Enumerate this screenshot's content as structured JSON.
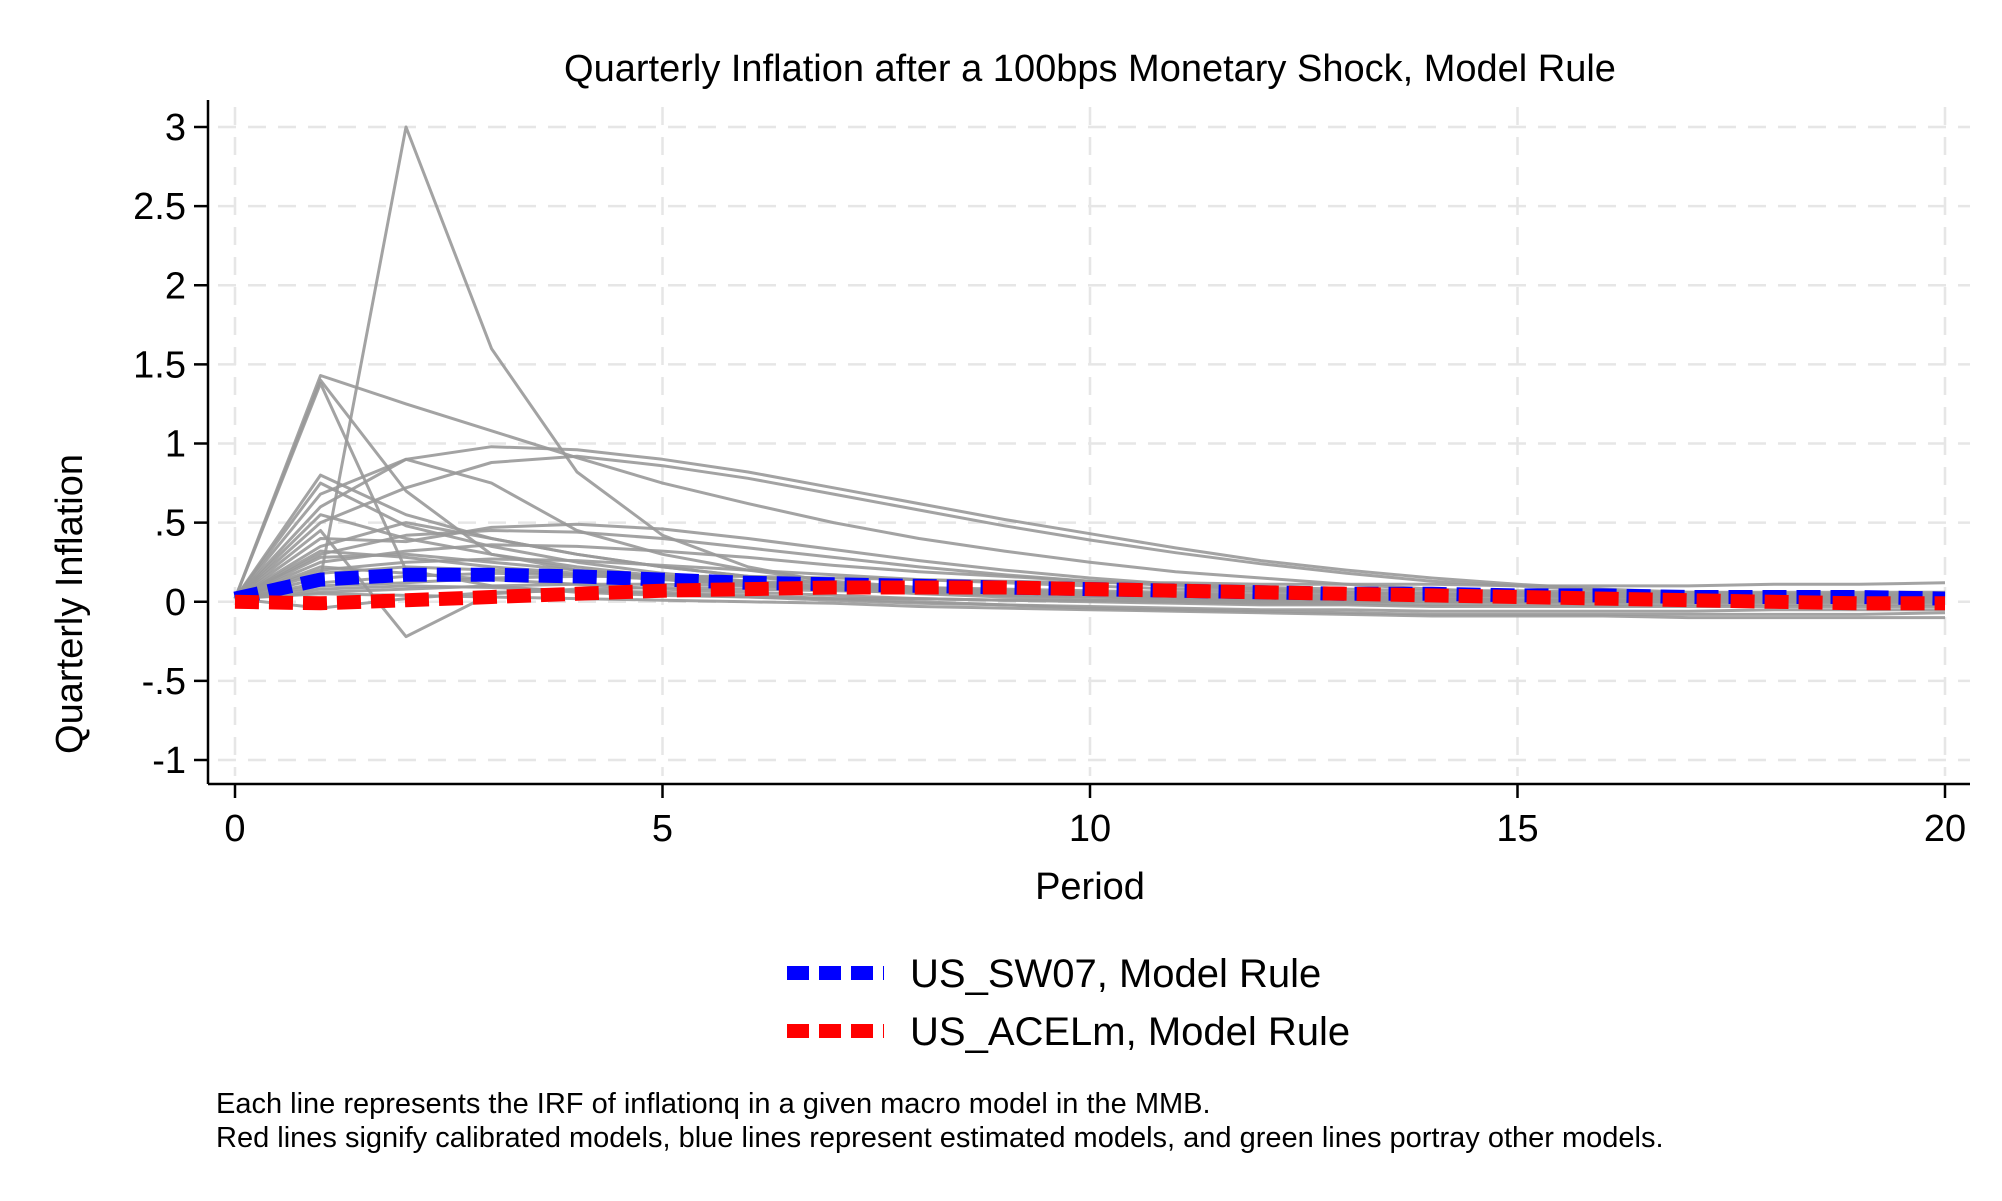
{
  "chart_data": {
    "type": "line",
    "title": "Quarterly Inflation after a 100bps Monetary Shock, Model Rule",
    "xlabel": "Period",
    "ylabel": "Quarterly Inflation",
    "xlim": [
      0,
      20
    ],
    "ylim": [
      -1,
      3
    ],
    "x_ticks": [
      0,
      5,
      10,
      15,
      20
    ],
    "x_tick_labels": [
      "0",
      "5",
      "10",
      "15",
      "20"
    ],
    "y_ticks": [
      -1,
      -0.5,
      0,
      0.5,
      1,
      1.5,
      2,
      2.5,
      3
    ],
    "y_tick_labels": [
      "-1",
      "-.5",
      "0",
      ".5",
      "1",
      "1.5",
      "2",
      "2.5",
      "3"
    ],
    "grid": true,
    "legend_position": "bottom",
    "colors": {
      "background_models": "#999999",
      "grid": "#e6e6e6",
      "us_sw07": "#0000ff",
      "us_acelm": "#ff0000"
    },
    "x": [
      0,
      1,
      2,
      3,
      4,
      5,
      6,
      7,
      8,
      9,
      10,
      11,
      12,
      13,
      14,
      15,
      16,
      17,
      18,
      19,
      20
    ],
    "series": [
      {
        "name": "US_SW07, Model Rule",
        "color": "#0000ff",
        "style": "dashed",
        "values": [
          0.02,
          0.14,
          0.17,
          0.17,
          0.16,
          0.14,
          0.12,
          0.11,
          0.1,
          0.09,
          0.08,
          0.07,
          0.06,
          0.05,
          0.05,
          0.04,
          0.04,
          0.03,
          0.03,
          0.03,
          0.02
        ]
      },
      {
        "name": "US_ACELm, Model Rule",
        "color": "#ff0000",
        "style": "dashed",
        "values": [
          0.0,
          -0.01,
          0.01,
          0.03,
          0.05,
          0.07,
          0.08,
          0.09,
          0.09,
          0.09,
          0.08,
          0.07,
          0.06,
          0.05,
          0.04,
          0.03,
          0.02,
          0.01,
          0.0,
          -0.01,
          -0.01
        ]
      }
    ],
    "background_series": [
      [
        0.02,
        1.4,
        0.7,
        0.3,
        0.2,
        0.15,
        0.1,
        0.08,
        0.06,
        0.05,
        0.04,
        0.03,
        0.02,
        0.02,
        0.01,
        0.01,
        0.01,
        0.01,
        0.01,
        0.01,
        0.01
      ],
      [
        0.02,
        1.43,
        1.25,
        1.08,
        0.91,
        0.75,
        0.62,
        0.5,
        0.4,
        0.32,
        0.25,
        0.19,
        0.15,
        0.11,
        0.08,
        0.06,
        0.05,
        0.04,
        0.03,
        0.02,
        0.02
      ],
      [
        0.02,
        1.38,
        0.2,
        0.1,
        0.06,
        0.04,
        0.03,
        0.02,
        0.02,
        0.01,
        0.01,
        0.01,
        0.0,
        0.0,
        0.0,
        0.0,
        0.0,
        0.0,
        0.0,
        0.0,
        0.0
      ],
      [
        0.02,
        0.15,
        3.0,
        1.6,
        0.82,
        0.42,
        0.22,
        0.12,
        0.07,
        0.04,
        0.03,
        0.02,
        0.01,
        0.01,
        0.0,
        0.0,
        0.0,
        0.0,
        0.0,
        0.0,
        0.0
      ],
      [
        0.02,
        0.6,
        0.9,
        0.98,
        0.96,
        0.9,
        0.82,
        0.72,
        0.62,
        0.52,
        0.43,
        0.34,
        0.26,
        0.2,
        0.15,
        0.11,
        0.08,
        0.06,
        0.05,
        0.04,
        0.03
      ],
      [
        0.02,
        0.5,
        0.72,
        0.88,
        0.92,
        0.86,
        0.78,
        0.68,
        0.58,
        0.48,
        0.39,
        0.31,
        0.24,
        0.18,
        0.13,
        0.1,
        0.07,
        0.05,
        0.04,
        0.03,
        0.02
      ],
      [
        0.02,
        0.8,
        0.55,
        0.4,
        0.3,
        0.22,
        0.16,
        0.11,
        0.08,
        0.06,
        0.04,
        0.03,
        0.02,
        0.02,
        0.01,
        0.01,
        0.01,
        0.0,
        0.0,
        0.0,
        0.0
      ],
      [
        0.02,
        0.75,
        0.48,
        0.35,
        0.25,
        0.18,
        0.13,
        0.09,
        0.06,
        0.04,
        0.03,
        0.02,
        0.01,
        0.01,
        0.0,
        0.0,
        0.0,
        0.0,
        0.0,
        0.0,
        0.0
      ],
      [
        0.02,
        0.68,
        0.9,
        0.75,
        0.45,
        0.3,
        0.2,
        0.13,
        0.09,
        0.06,
        0.04,
        0.03,
        0.02,
        0.01,
        0.01,
        0.0,
        0.0,
        0.0,
        0.0,
        0.0,
        0.0
      ],
      [
        0.02,
        0.4,
        0.38,
        0.47,
        0.49,
        0.46,
        0.4,
        0.33,
        0.26,
        0.2,
        0.15,
        0.11,
        0.08,
        0.06,
        0.05,
        0.04,
        0.03,
        0.03,
        0.02,
        0.02,
        0.02
      ],
      [
        0.02,
        0.3,
        0.42,
        0.45,
        0.44,
        0.4,
        0.34,
        0.28,
        0.22,
        0.17,
        0.13,
        0.1,
        0.08,
        0.06,
        0.05,
        0.04,
        0.03,
        0.02,
        0.02,
        0.02,
        0.02
      ],
      [
        0.02,
        0.55,
        0.4,
        0.3,
        0.22,
        0.16,
        0.12,
        0.09,
        0.07,
        0.05,
        0.04,
        0.03,
        0.02,
        0.02,
        0.01,
        0.01,
        0.01,
        0.01,
        0.0,
        0.0,
        0.0
      ],
      [
        0.02,
        0.35,
        0.5,
        0.4,
        0.3,
        0.22,
        0.16,
        0.12,
        0.09,
        0.07,
        0.05,
        0.04,
        0.03,
        0.02,
        0.02,
        0.01,
        0.01,
        0.01,
        0.01,
        0.0,
        0.0
      ],
      [
        0.02,
        0.25,
        0.32,
        0.36,
        0.35,
        0.32,
        0.28,
        0.23,
        0.19,
        0.16,
        0.13,
        0.11,
        0.09,
        0.08,
        0.07,
        0.07,
        0.06,
        0.06,
        0.06,
        0.06,
        0.06
      ],
      [
        0.02,
        0.1,
        0.12,
        0.15,
        0.16,
        0.16,
        0.16,
        0.15,
        0.14,
        0.13,
        0.12,
        0.12,
        0.11,
        0.11,
        0.11,
        0.1,
        0.1,
        0.1,
        0.11,
        0.11,
        0.12
      ],
      [
        0.02,
        0.2,
        0.25,
        0.27,
        0.26,
        0.23,
        0.2,
        0.17,
        0.14,
        0.12,
        0.1,
        0.08,
        0.07,
        0.06,
        0.05,
        0.05,
        0.04,
        0.04,
        0.04,
        0.04,
        0.04
      ],
      [
        0.02,
        0.45,
        -0.22,
        0.05,
        0.08,
        0.09,
        0.08,
        0.07,
        0.06,
        0.05,
        0.04,
        0.03,
        0.02,
        0.02,
        0.01,
        0.01,
        0.01,
        0.0,
        0.0,
        0.0,
        0.0
      ],
      [
        0.02,
        -0.04,
        0.02,
        0.06,
        0.07,
        0.06,
        0.04,
        0.02,
        0.0,
        -0.02,
        -0.04,
        -0.05,
        -0.06,
        -0.07,
        -0.08,
        -0.08,
        -0.08,
        -0.08,
        -0.08,
        -0.08,
        -0.07
      ],
      [
        0.02,
        0.05,
        0.04,
        0.03,
        0.02,
        0.01,
        0.0,
        -0.01,
        -0.03,
        -0.04,
        -0.05,
        -0.06,
        -0.07,
        -0.08,
        -0.09,
        -0.09,
        -0.09,
        -0.1,
        -0.1,
        -0.1,
        -0.1
      ],
      [
        0.02,
        0.12,
        0.16,
        0.18,
        0.17,
        0.15,
        0.13,
        0.11,
        0.09,
        0.08,
        0.07,
        0.06,
        0.06,
        0.05,
        0.05,
        0.05,
        0.05,
        0.05,
        0.05,
        0.05,
        0.05
      ],
      [
        0.02,
        0.08,
        0.1,
        0.09,
        0.07,
        0.05,
        0.03,
        0.01,
        -0.01,
        -0.02,
        -0.03,
        -0.04,
        -0.05,
        -0.05,
        -0.06,
        -0.06,
        -0.06,
        -0.06,
        -0.05,
        -0.05,
        -0.05
      ],
      [
        0.02,
        0.18,
        0.22,
        0.2,
        0.17,
        0.14,
        0.11,
        0.09,
        0.07,
        0.06,
        0.05,
        0.04,
        0.04,
        0.03,
        0.03,
        0.03,
        0.03,
        0.03,
        0.03,
        0.03,
        0.03
      ],
      [
        0.02,
        0.06,
        0.08,
        0.1,
        0.11,
        0.11,
        0.1,
        0.09,
        0.08,
        0.07,
        0.06,
        0.05,
        0.04,
        0.03,
        0.02,
        0.01,
        0.01,
        0.0,
        0.0,
        0.0,
        0.0
      ],
      [
        0.02,
        0.28,
        0.3,
        0.25,
        0.2,
        0.15,
        0.11,
        0.08,
        0.05,
        0.03,
        0.01,
        0.0,
        -0.01,
        -0.01,
        -0.02,
        -0.02,
        -0.02,
        -0.02,
        -0.02,
        -0.02,
        -0.02
      ],
      [
        0.02,
        0.22,
        0.18,
        0.14,
        0.11,
        0.08,
        0.06,
        0.04,
        0.02,
        0.01,
        0.0,
        -0.01,
        -0.02,
        -0.02,
        -0.03,
        -0.03,
        -0.03,
        -0.03,
        -0.03,
        -0.03,
        -0.03
      ],
      [
        0.02,
        0.32,
        0.28,
        0.22,
        0.18,
        0.14,
        0.11,
        0.09,
        0.07,
        0.06,
        0.05,
        0.04,
        0.04,
        0.04,
        0.04,
        0.04,
        0.04,
        0.04,
        0.04,
        0.04,
        0.04
      ]
    ]
  },
  "legend": {
    "items": [
      {
        "label": "US_SW07, Model Rule",
        "color": "#0000ff"
      },
      {
        "label": "US_ACELm, Model Rule",
        "color": "#ff0000"
      }
    ]
  },
  "notes": {
    "line1": "Each line represents the IRF of inflationq in a given macro model in the MMB.",
    "line2": "Red lines signify calibrated models, blue lines represent estimated models, and green lines portray other models."
  }
}
